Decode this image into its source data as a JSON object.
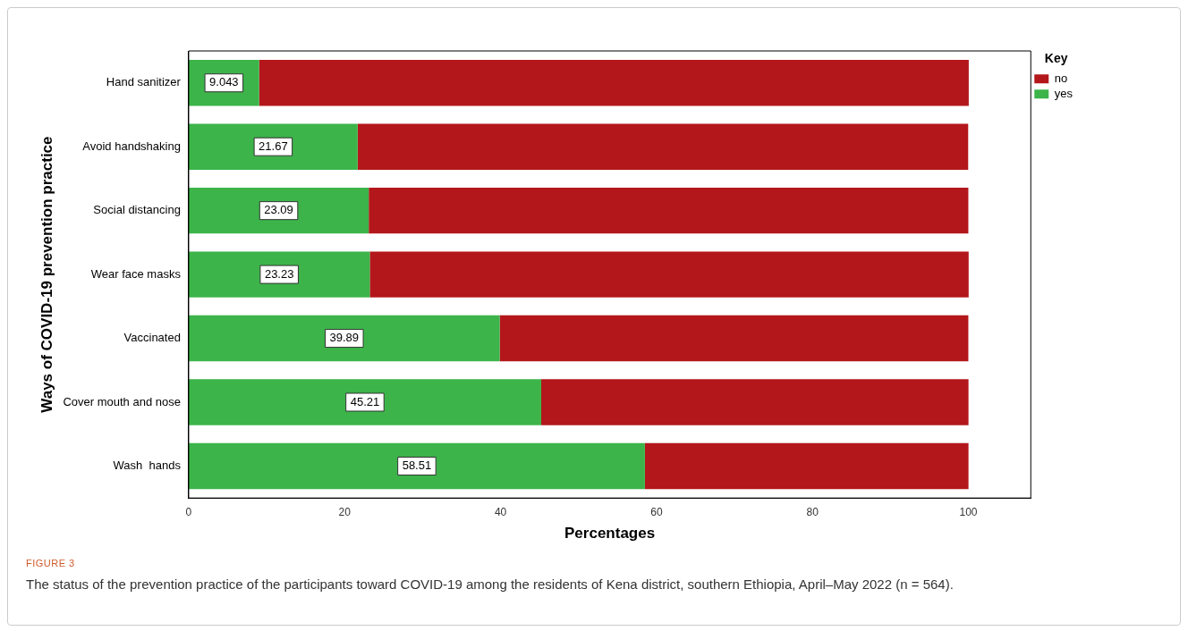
{
  "chart_data": {
    "type": "bar",
    "orientation": "horizontal",
    "stacked": true,
    "xlabel": "Percentages",
    "ylabel": "Ways of COVID-19 prevention practice",
    "legend_title": "Key",
    "legend": "right",
    "categories": [
      "Hand sanitizer",
      "Avoid handshaking",
      "Social distancing",
      "Wear face masks",
      "Vaccinated",
      "Cover mouth and nose",
      "Wash  hands"
    ],
    "series": [
      {
        "name": "yes",
        "color": "#3cb44a",
        "values": [
          9.043,
          21.67,
          23.09,
          23.23,
          39.89,
          45.21,
          58.51
        ],
        "value_labels": [
          "9.043",
          "21.67",
          "23.09",
          "23.23",
          "39.89",
          "45.21",
          "58.51"
        ]
      },
      {
        "name": "no",
        "color": "#b3171b",
        "values": [
          91.0,
          78.3,
          76.9,
          76.8,
          60.1,
          54.8,
          41.5
        ]
      }
    ],
    "xlim": [
      0,
      108
    ],
    "xticks": [
      0,
      20,
      40,
      60,
      80,
      100
    ],
    "grid": false,
    "annotations": [
      "FIGURE 3",
      "The status of the prevention practice of the participants toward COVID-19 among the residents of Kena district, southern Ethiopia, April–May 2022 (n = 564)."
    ]
  }
}
